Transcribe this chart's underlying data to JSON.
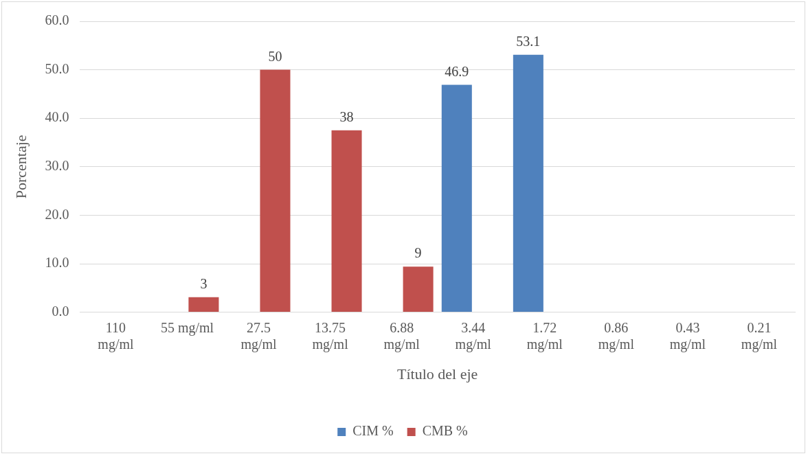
{
  "chart_data": {
    "type": "bar",
    "xlabel": "Título del eje",
    "ylabel": "Porcentaje",
    "categories": [
      "110 mg/ml",
      "55 mg/ml",
      "27.5 mg/ml",
      "13.75 mg/ml",
      "6.88 mg/ml",
      "3.44 mg/ml",
      "1.72 mg/ml",
      "0.86 mg/ml",
      "0.43 mg/ml",
      "0.21 mg/ml"
    ],
    "series": [
      {
        "name": "CIM %",
        "color": "#4f81bd",
        "values": [
          null,
          null,
          null,
          null,
          null,
          46.9,
          53.1,
          null,
          null,
          null
        ],
        "value_labels": [
          null,
          null,
          null,
          null,
          null,
          "46.9",
          "53.1",
          null,
          null,
          null
        ]
      },
      {
        "name": "CMB %",
        "color": "#c0504d",
        "values": [
          null,
          3.1,
          50,
          37.5,
          9.4,
          null,
          null,
          null,
          null,
          null
        ],
        "value_labels": [
          null,
          "3",
          "50",
          "38",
          "9",
          null,
          null,
          null,
          null,
          null
        ]
      }
    ],
    "ylim": [
      0,
      60
    ],
    "yticks": [
      {
        "value": 0,
        "label": "0.0"
      },
      {
        "value": 10,
        "label": "10.0"
      },
      {
        "value": 20,
        "label": "20.0"
      },
      {
        "value": 30,
        "label": "30.0"
      },
      {
        "value": 40,
        "label": "40.0"
      },
      {
        "value": 50,
        "label": "50.0"
      },
      {
        "value": 60,
        "label": "60.0"
      }
    ],
    "grid": "y",
    "legend": "bottom"
  }
}
